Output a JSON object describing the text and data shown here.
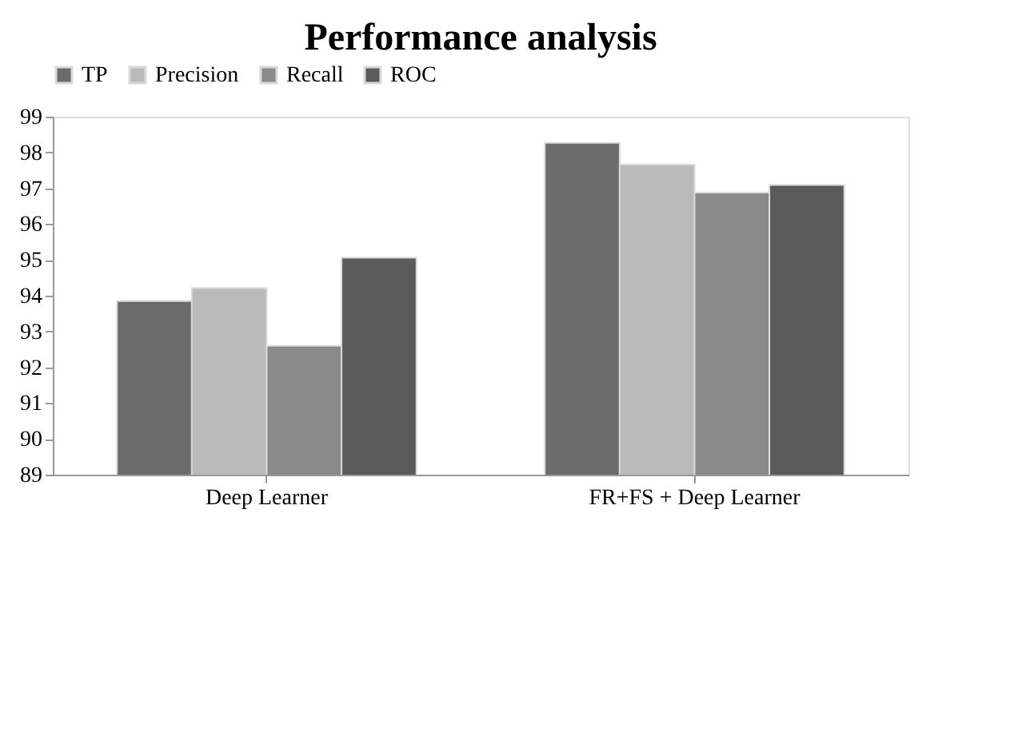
{
  "chart_data": {
    "type": "bar",
    "title": "Performance analysis",
    "categories": [
      "Deep Learner",
      "FR+FS + Deep Learner"
    ],
    "series": [
      {
        "name": "TP",
        "color": "#6b6b6b",
        "values": [
          93.85,
          98.27
        ]
      },
      {
        "name": "Precision",
        "color": "#bababa",
        "values": [
          94.21,
          97.66
        ]
      },
      {
        "name": "Recall",
        "color": "#8a8a8a",
        "values": [
          92.6,
          96.88
        ]
      },
      {
        "name": "ROC",
        "color": "#5a5a5a",
        "values": [
          95.06,
          97.09
        ]
      }
    ],
    "ylim": [
      89,
      99
    ],
    "yticks": [
      89,
      90,
      91,
      92,
      93,
      94,
      95,
      96,
      97,
      98,
      99
    ],
    "grid": false,
    "legend": "top"
  }
}
